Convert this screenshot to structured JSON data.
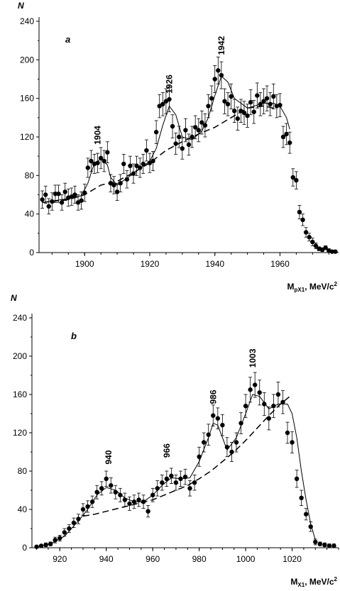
{
  "chart_data": [
    {
      "type": "scatter",
      "panel_label": "a",
      "ylabel": "N",
      "xlabel_main": "M",
      "xlabel_sub": "pX1",
      "xlabel_unit": ", MeV/c",
      "xlabel_sup": "2",
      "xlim": [
        1886,
        1978
      ],
      "ylim": [
        0,
        240
      ],
      "xticks": [
        1900,
        1920,
        1940,
        1960
      ],
      "yticks": [
        0,
        40,
        80,
        120,
        160,
        200,
        240
      ],
      "peaks": [
        {
          "label": "1904",
          "x": 1904,
          "y": 112
        },
        {
          "label": "1926",
          "x": 1926,
          "y": 165
        },
        {
          "label": "1942",
          "x": 1942,
          "y": 205
        }
      ],
      "x": [
        1887,
        1888,
        1889,
        1890,
        1891,
        1892,
        1893,
        1894,
        1895,
        1896,
        1897,
        1898,
        1899,
        1900,
        1901,
        1902,
        1903,
        1904,
        1905,
        1906,
        1907,
        1908,
        1909,
        1910,
        1911,
        1912,
        1913,
        1914,
        1915,
        1916,
        1917,
        1918,
        1919,
        1920,
        1921,
        1922,
        1923,
        1924,
        1925,
        1926,
        1927,
        1928,
        1929,
        1930,
        1931,
        1932,
        1933,
        1934,
        1935,
        1936,
        1937,
        1938,
        1939,
        1940,
        1941,
        1942,
        1943,
        1944,
        1945,
        1946,
        1947,
        1948,
        1949,
        1950,
        1951,
        1952,
        1953,
        1954,
        1955,
        1956,
        1957,
        1958,
        1959,
        1960,
        1961,
        1962,
        1963,
        1964,
        1965,
        1966,
        1967,
        1968,
        1969,
        1970,
        1971,
        1972,
        1973,
        1974,
        1975,
        1976,
        1977
      ],
      "y": [
        55,
        60,
        48,
        53,
        61,
        61,
        52,
        63,
        57,
        58,
        60,
        52,
        54,
        62,
        88,
        95,
        92,
        93,
        98,
        95,
        104,
        72,
        70,
        63,
        72,
        92,
        76,
        90,
        82,
        90,
        88,
        92,
        106,
        93,
        95,
        125,
        152,
        154,
        157,
        159,
        131,
        113,
        120,
        108,
        127,
        112,
        120,
        130,
        127,
        135,
        132,
        152,
        160,
        180,
        189,
        184,
        157,
        154,
        162,
        147,
        139,
        147,
        145,
        142,
        156,
        146,
        163,
        154,
        157,
        160,
        154,
        162,
        152,
        153,
        120,
        123,
        114,
        78,
        75,
        42,
        34,
        21,
        16,
        11,
        7,
        4,
        3,
        5,
        2,
        1,
        1
      ],
      "err": [
        9,
        9,
        8,
        9,
        9,
        9,
        8,
        9,
        9,
        9,
        9,
        8,
        9,
        9,
        10,
        11,
        10,
        10,
        11,
        11,
        11,
        9,
        9,
        9,
        9,
        10,
        9,
        10,
        10,
        10,
        10,
        10,
        11,
        10,
        10,
        12,
        12,
        12,
        13,
        13,
        12,
        11,
        11,
        11,
        12,
        11,
        11,
        12,
        12,
        12,
        12,
        12,
        13,
        14,
        14,
        14,
        13,
        12,
        13,
        12,
        12,
        12,
        12,
        12,
        13,
        12,
        13,
        12,
        13,
        13,
        12,
        13,
        12,
        12,
        11,
        11,
        11,
        9,
        9,
        7,
        6,
        5,
        4,
        4,
        3,
        2,
        2,
        2,
        2,
        1,
        1
      ],
      "fit_solid": [
        [
          1887,
          52
        ],
        [
          1895,
          56
        ],
        [
          1899,
          59
        ],
        [
          1901,
          72
        ],
        [
          1903,
          93
        ],
        [
          1905,
          97
        ],
        [
          1907,
          91
        ],
        [
          1908,
          78
        ],
        [
          1910,
          70
        ],
        [
          1915,
          82
        ],
        [
          1920,
          95
        ],
        [
          1922,
          108
        ],
        [
          1924,
          132
        ],
        [
          1926,
          152
        ],
        [
          1928,
          143
        ],
        [
          1930,
          120
        ],
        [
          1933,
          117
        ],
        [
          1936,
          126
        ],
        [
          1938,
          140
        ],
        [
          1940,
          163
        ],
        [
          1942,
          183
        ],
        [
          1944,
          177
        ],
        [
          1946,
          160
        ],
        [
          1950,
          150
        ],
        [
          1955,
          155
        ],
        [
          1958,
          155
        ],
        [
          1960,
          152
        ],
        [
          1962,
          140
        ],
        [
          1963,
          128
        ]
      ],
      "fit_dashed": [
        [
          1887,
          52
        ],
        [
          1895,
          55
        ],
        [
          1900,
          60
        ],
        [
          1905,
          70
        ],
        [
          1910,
          74
        ],
        [
          1915,
          83
        ],
        [
          1920,
          93
        ],
        [
          1925,
          106
        ],
        [
          1930,
          115
        ],
        [
          1935,
          123
        ],
        [
          1940,
          130
        ],
        [
          1945,
          140
        ],
        [
          1950,
          150
        ],
        [
          1955,
          152
        ],
        [
          1958,
          150
        ]
      ]
    },
    {
      "type": "scatter",
      "panel_label": "b",
      "ylabel": "N",
      "xlabel_main": "M",
      "xlabel_sub": "X1",
      "xlabel_unit": ", MeV/c",
      "xlabel_sup": "2",
      "xlim": [
        908,
        1040
      ],
      "ylim": [
        0,
        240
      ],
      "xticks": [
        920,
        940,
        960,
        980,
        1000,
        1020
      ],
      "yticks": [
        0,
        40,
        80,
        120,
        160,
        200,
        240
      ],
      "peaks": [
        {
          "label": "940",
          "x": 941,
          "y": 87
        },
        {
          "label": "966",
          "x": 966,
          "y": 94
        },
        {
          "label": "986",
          "x": 986,
          "y": 150
        },
        {
          "label": "1003",
          "x": 1003,
          "y": 188
        }
      ],
      "x": [
        910,
        912,
        914,
        916,
        918,
        920,
        922,
        924,
        926,
        928,
        930,
        932,
        934,
        936,
        938,
        940,
        942,
        944,
        946,
        948,
        950,
        952,
        954,
        956,
        958,
        960,
        962,
        964,
        966,
        968,
        970,
        972,
        974,
        976,
        978,
        980,
        982,
        984,
        986,
        988,
        990,
        992,
        994,
        996,
        998,
        1000,
        1002,
        1004,
        1006,
        1008,
        1010,
        1012,
        1014,
        1016,
        1018,
        1020,
        1022,
        1024,
        1026,
        1028,
        1030,
        1032,
        1034,
        1036,
        1038
      ],
      "y": [
        1,
        2,
        3,
        4,
        8,
        10,
        16,
        20,
        26,
        30,
        40,
        43,
        48,
        58,
        62,
        72,
        65,
        58,
        55,
        50,
        46,
        48,
        50,
        48,
        38,
        55,
        62,
        68,
        72,
        75,
        68,
        72,
        74,
        62,
        68,
        95,
        110,
        118,
        138,
        135,
        128,
        105,
        100,
        110,
        130,
        148,
        165,
        170,
        162,
        150,
        135,
        148,
        160,
        152,
        120,
        110,
        72,
        52,
        35,
        22,
        6,
        4,
        3,
        2,
        2
      ],
      "err": [
        1,
        1,
        2,
        2,
        3,
        3,
        4,
        4,
        5,
        5,
        6,
        6,
        6,
        7,
        7,
        8,
        8,
        7,
        7,
        7,
        7,
        7,
        7,
        7,
        6,
        7,
        8,
        8,
        8,
        8,
        8,
        8,
        8,
        8,
        8,
        10,
        10,
        11,
        11,
        11,
        11,
        10,
        10,
        10,
        11,
        12,
        13,
        13,
        13,
        12,
        12,
        12,
        13,
        12,
        11,
        11,
        9,
        8,
        6,
        5,
        3,
        2,
        2,
        2,
        2
      ],
      "fit_solid": [
        [
          910,
          1
        ],
        [
          916,
          4
        ],
        [
          922,
          12
        ],
        [
          928,
          28
        ],
        [
          932,
          40
        ],
        [
          936,
          55
        ],
        [
          940,
          63
        ],
        [
          944,
          60
        ],
        [
          948,
          52
        ],
        [
          952,
          48
        ],
        [
          956,
          48
        ],
        [
          960,
          55
        ],
        [
          964,
          65
        ],
        [
          968,
          73
        ],
        [
          972,
          72
        ],
        [
          976,
          73
        ],
        [
          980,
          90
        ],
        [
          984,
          115
        ],
        [
          986,
          130
        ],
        [
          988,
          128
        ],
        [
          990,
          115
        ],
        [
          992,
          102
        ],
        [
          996,
          115
        ],
        [
          1000,
          140
        ],
        [
          1003,
          160
        ],
        [
          1006,
          158
        ],
        [
          1010,
          145
        ],
        [
          1014,
          150
        ],
        [
          1018,
          150
        ],
        [
          1020,
          140
        ],
        [
          1022,
          115
        ],
        [
          1024,
          80
        ],
        [
          1026,
          50
        ],
        [
          1028,
          25
        ],
        [
          1030,
          8
        ]
      ],
      "fit_dashed": [
        [
          930,
          33
        ],
        [
          935,
          35
        ],
        [
          940,
          38
        ],
        [
          945,
          41
        ],
        [
          950,
          44
        ],
        [
          955,
          47
        ],
        [
          960,
          50
        ],
        [
          965,
          55
        ],
        [
          970,
          60
        ],
        [
          975,
          65
        ],
        [
          980,
          72
        ],
        [
          985,
          80
        ],
        [
          990,
          90
        ],
        [
          995,
          100
        ],
        [
          1000,
          112
        ],
        [
          1005,
          125
        ],
        [
          1010,
          138
        ],
        [
          1015,
          150
        ],
        [
          1020,
          160
        ]
      ]
    }
  ]
}
